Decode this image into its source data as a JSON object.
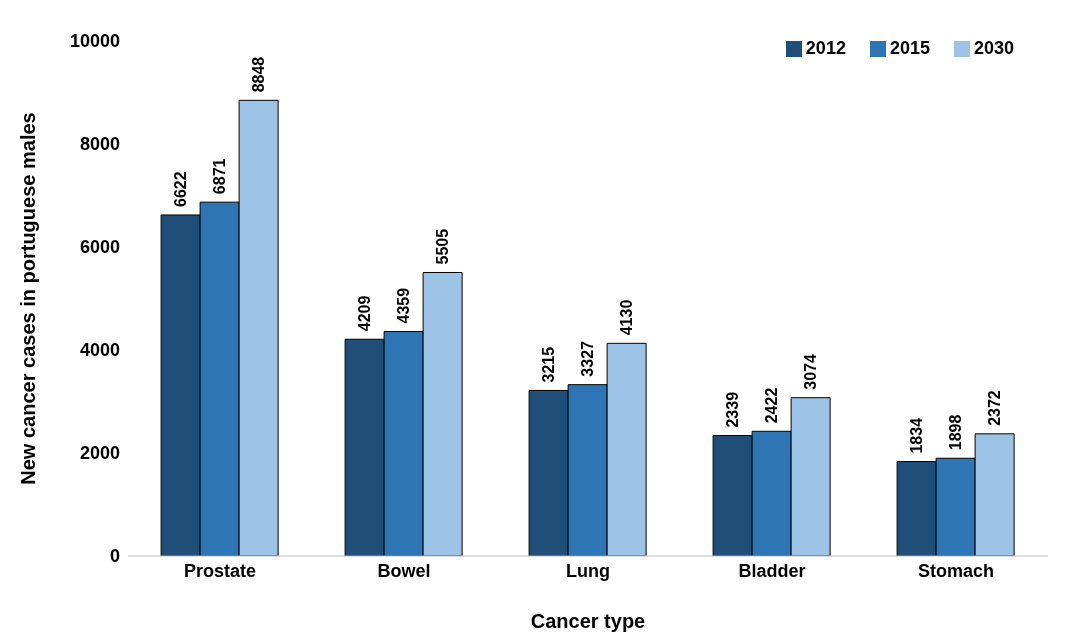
{
  "chart_data": {
    "type": "bar",
    "xlabel": "Cancer type",
    "ylabel": "New cancer cases in portuguese males",
    "categories": [
      "Prostate",
      "Bowel",
      "Lung",
      "Bladder",
      "Stomach"
    ],
    "series": [
      {
        "name": "2012",
        "color": "#1f4e79",
        "values": [
          6622,
          4209,
          3215,
          2339,
          1834
        ]
      },
      {
        "name": "2015",
        "color": "#2e75b6",
        "values": [
          6871,
          4359,
          3327,
          2422,
          1898
        ]
      },
      {
        "name": "2030",
        "color": "#9dc3e6",
        "values": [
          8848,
          5505,
          4130,
          3074,
          2372
        ]
      }
    ],
    "ylim": [
      0,
      10000
    ],
    "yticks": [
      0,
      2000,
      4000,
      6000,
      8000,
      10000
    ],
    "grid": false,
    "legend": "top right",
    "data_labels": true
  }
}
